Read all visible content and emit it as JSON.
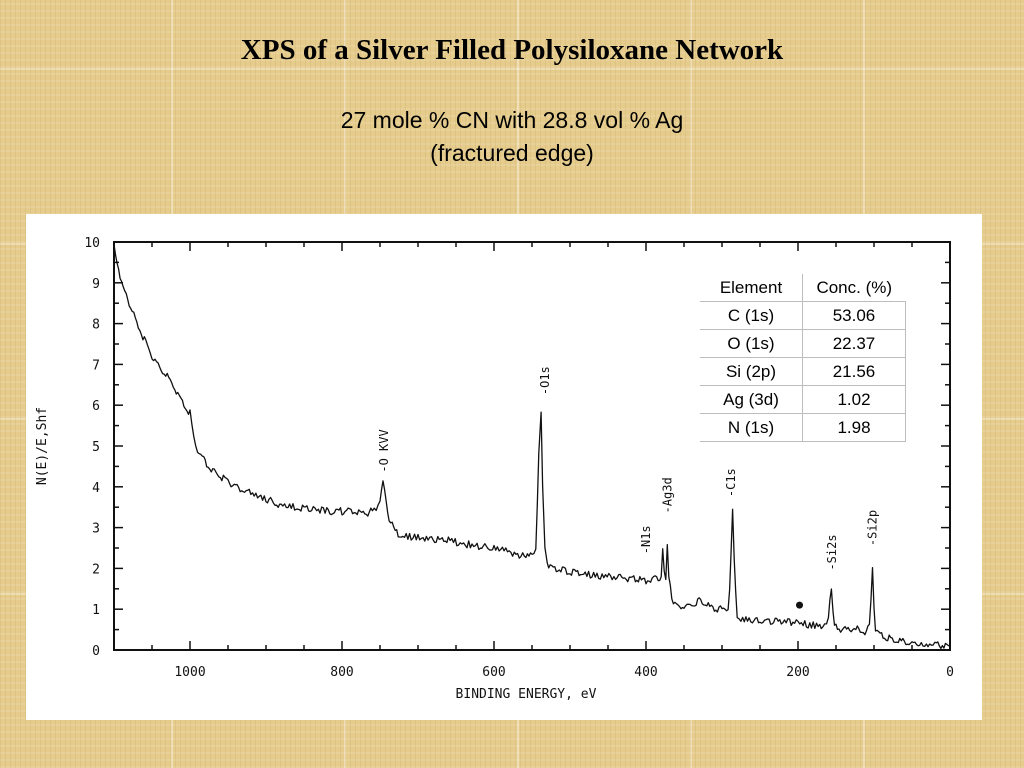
{
  "slide": {
    "title": "XPS of a Silver Filled Polysiloxane Network",
    "subtitle_line1": "27 mole % CN with 28.8 vol % Ag",
    "subtitle_line2": "(fractured edge)"
  },
  "table": {
    "headers": [
      "Element",
      "Conc. (%)"
    ],
    "rows": [
      [
        "C (1s)",
        "53.06"
      ],
      [
        "O (1s)",
        "22.37"
      ],
      [
        "Si (2p)",
        "21.56"
      ],
      [
        "Ag (3d)",
        "1.02"
      ],
      [
        "N (1s)",
        "1.98"
      ]
    ]
  },
  "chart_data": {
    "type": "line",
    "title": "",
    "xlabel": "BINDING ENERGY, eV",
    "ylabel": "N(E)/E,Shf",
    "xlim": [
      1100,
      0
    ],
    "ylim": [
      0,
      10
    ],
    "x_reversed": true,
    "xticks": [
      1000,
      800,
      600,
      400,
      200,
      0
    ],
    "xtick_labels": [
      "1000",
      "800",
      "600",
      "400",
      "200",
      "0"
    ],
    "yticks": [
      0,
      1,
      2,
      3,
      4,
      5,
      6,
      7,
      8,
      9,
      10
    ],
    "ytick_labels": [
      "0",
      "1",
      "2",
      "3",
      "4",
      "5",
      "6",
      "7",
      "8",
      "9",
      "10"
    ],
    "grid": false,
    "series": [
      {
        "x": [
          1100,
          1090,
          1080,
          1070,
          1060,
          1050,
          1040,
          1030,
          1020,
          1010,
          1000,
          995,
          990,
          980,
          970,
          960,
          940,
          920,
          900,
          880,
          860,
          840,
          820,
          800,
          790,
          780,
          770,
          760,
          755,
          750,
          746,
          742,
          738,
          730,
          720,
          700,
          680,
          660,
          640,
          620,
          600,
          580,
          560,
          550,
          545,
          541,
          538,
          536,
          533,
          530,
          528,
          524,
          520,
          500,
          480,
          460,
          440,
          420,
          400,
          390,
          380,
          378,
          376,
          374,
          372,
          370,
          368,
          366,
          364,
          360,
          350,
          340,
          330,
          320,
          310,
          300,
          292,
          290,
          288,
          286,
          284,
          282,
          280,
          275,
          260,
          240,
          220,
          200,
          180,
          165,
          160,
          158,
          156,
          154,
          152,
          150,
          140,
          130,
          120,
          110,
          106,
          104,
          102,
          100,
          98,
          96,
          90,
          80,
          70,
          60,
          40,
          20,
          0
        ],
        "y": [
          9.9,
          9.0,
          8.5,
          8.0,
          7.6,
          7.2,
          6.9,
          6.7,
          6.4,
          6.1,
          5.8,
          5.2,
          4.9,
          4.6,
          4.4,
          4.25,
          4.0,
          3.85,
          3.7,
          3.55,
          3.5,
          3.45,
          3.4,
          3.4,
          3.45,
          3.4,
          3.35,
          3.4,
          3.5,
          3.7,
          4.1,
          3.6,
          3.2,
          2.9,
          2.8,
          2.75,
          2.7,
          2.7,
          2.6,
          2.55,
          2.5,
          2.4,
          2.3,
          2.3,
          2.5,
          4.8,
          5.8,
          4.0,
          2.6,
          2.2,
          2.1,
          2.0,
          2.0,
          1.9,
          1.85,
          1.8,
          1.8,
          1.75,
          1.7,
          1.75,
          1.8,
          2.4,
          1.9,
          1.7,
          2.5,
          1.8,
          1.6,
          1.3,
          1.15,
          1.1,
          1.05,
          1.1,
          1.2,
          1.1,
          1.0,
          1.0,
          1.0,
          1.5,
          2.4,
          3.4,
          2.2,
          1.4,
          0.85,
          0.75,
          0.7,
          0.7,
          0.7,
          0.65,
          0.6,
          0.6,
          0.8,
          1.3,
          1.5,
          0.9,
          0.6,
          0.55,
          0.5,
          0.5,
          0.5,
          0.45,
          0.6,
          1.2,
          2.1,
          1.1,
          0.55,
          0.4,
          0.35,
          0.3,
          0.25,
          0.2,
          0.15,
          0.12,
          0.1
        ]
      }
    ],
    "peak_labels": [
      {
        "text": "-O KVV",
        "x": 745,
        "y": 4.2
      },
      {
        "text": "-O1s",
        "x": 533,
        "y": 6.1
      },
      {
        "text": "-N1s",
        "x": 400,
        "y": 2.2
      },
      {
        "text": "-Ag3d",
        "x": 372,
        "y": 3.2
      },
      {
        "text": "-C1s",
        "x": 288,
        "y": 3.6
      },
      {
        "text": "-Si2s",
        "x": 155,
        "y": 1.8
      },
      {
        "text": "-Si2p",
        "x": 102,
        "y": 2.4
      }
    ],
    "markers": [
      {
        "x": 198,
        "y": 1.1
      }
    ]
  }
}
